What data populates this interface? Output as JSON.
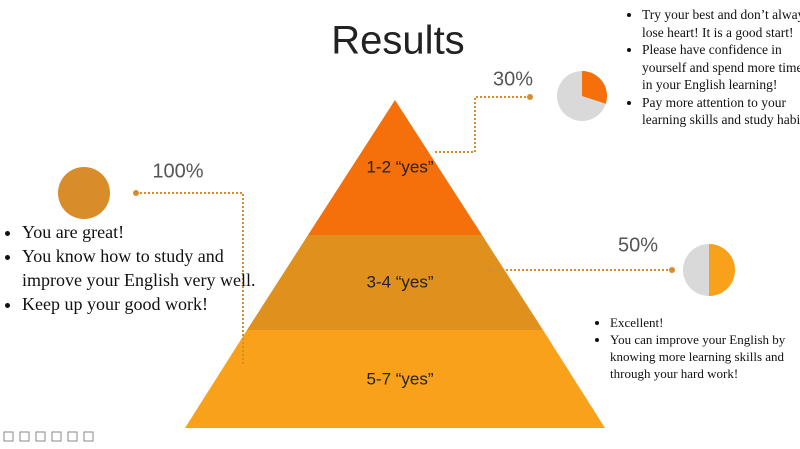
{
  "title": "Results",
  "levels": [
    {
      "label": "1-2 “yes”",
      "percent": 30,
      "percent_label": "30%",
      "advice": [
        "Try your best and don’t always lose heart! It is a good start!",
        "Please have confidence in yourself and spend more time in your English learning!",
        "Pay more attention to your learning skills and study habits"
      ]
    },
    {
      "label": "3-4 “yes”",
      "percent": 50,
      "percent_label": "50%",
      "advice": [
        "Excellent!",
        "You can improve your English by knowing more learning skills and through your hard work!"
      ]
    },
    {
      "label": "5-7 “yes”",
      "percent": 100,
      "percent_label": "100%",
      "advice": [
        "You are great!",
        "You know how to study and improve your English very well.",
        "Keep up your good work!"
      ]
    }
  ]
}
